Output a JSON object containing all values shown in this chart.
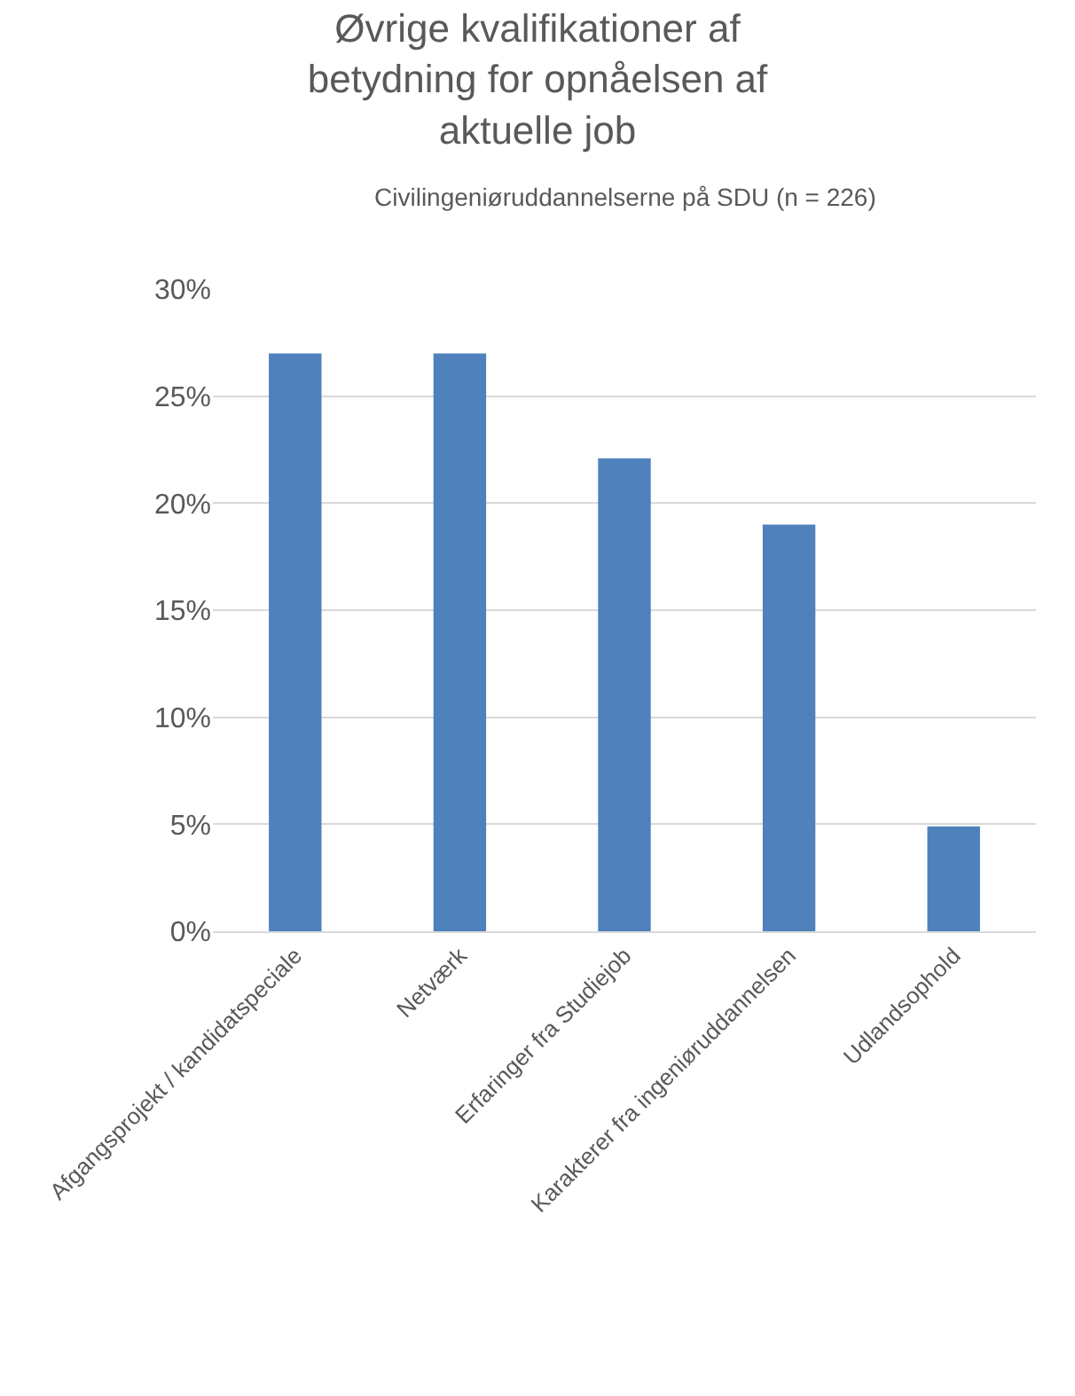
{
  "chart_data": {
    "type": "bar",
    "title": "Øvrige kvalifikationer af betydning for opnåelsen af aktuelle job",
    "subtitle": "Civilingeniøruddannelserne på SDU (n = 226)",
    "categories": [
      "Afgangsprojekt / kandidatspeciale",
      "Netværk",
      "Erfaringer fra Studiejob",
      "Karakterer fra ingeniøruddannelsen",
      "Udlandsophold"
    ],
    "values": [
      27.0,
      27.0,
      22.1,
      19.0,
      4.9
    ],
    "color": "#4f81bd",
    "ylim": [
      0,
      30
    ],
    "yticks": [
      {
        "value": 0,
        "label": "0%"
      },
      {
        "value": 5,
        "label": "5%"
      },
      {
        "value": 10,
        "label": "10%"
      },
      {
        "value": 15,
        "label": "15%"
      },
      {
        "value": 20,
        "label": "20%"
      },
      {
        "value": 25,
        "label": "25%"
      },
      {
        "value": 30,
        "label": "30%"
      }
    ],
    "grid": "y",
    "legend": false
  }
}
